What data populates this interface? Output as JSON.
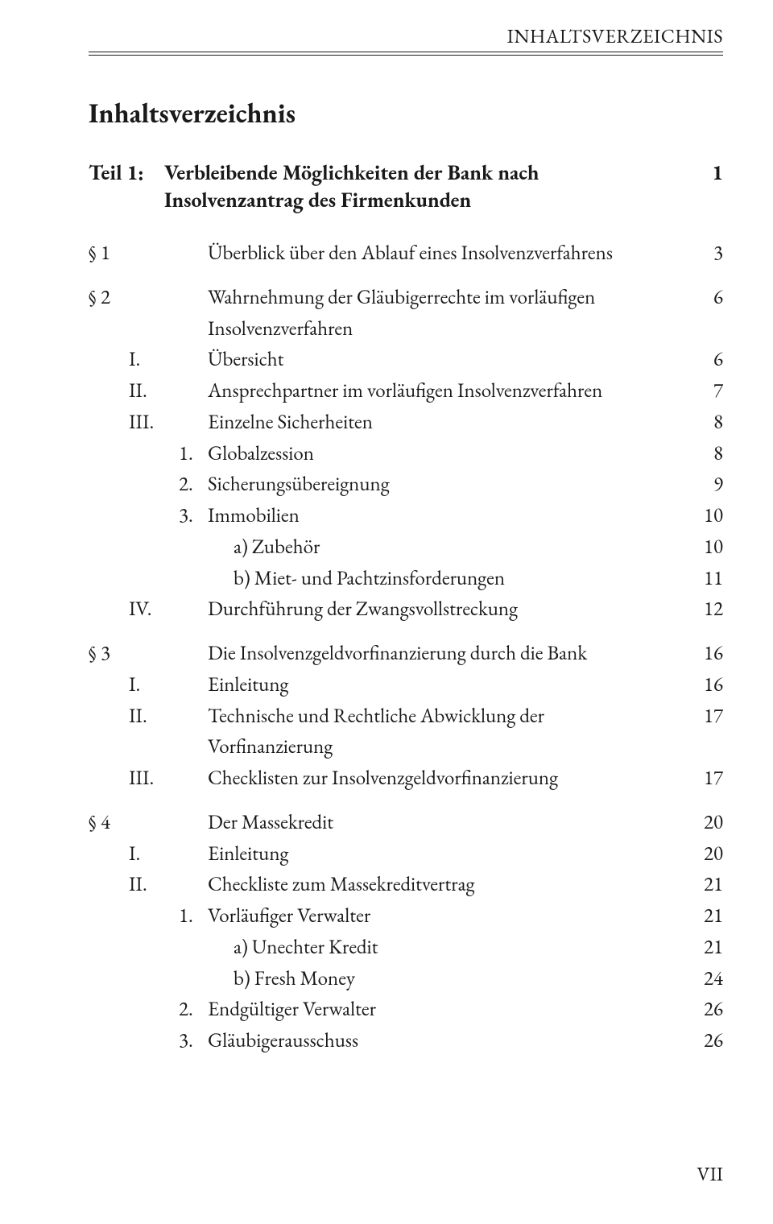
{
  "running_head": "INHALTSVERZEICHNIS",
  "main_title": "Inhaltsverzeichnis",
  "part": {
    "label": "Teil 1:",
    "title": "Verbleibende Möglichkeiten der Bank nach Insolvenzantrag des Firmenkunden",
    "page": "1"
  },
  "rows": [
    {
      "kind": "section",
      "sec": "§ 1",
      "r1": "",
      "r2": "",
      "title": "Überblick über den Ablauf eines Insolvenzverfahrens",
      "page": "3"
    },
    {
      "kind": "section",
      "sec": "§ 2",
      "r1": "",
      "r2": "",
      "title": "Wahrnehmung der Gläubigerrechte im vorläufigen Insolvenzverfahren",
      "page": "6"
    },
    {
      "kind": "sub2",
      "sec": "",
      "r1": "I.",
      "r2": "",
      "title": "Übersicht",
      "page": "6"
    },
    {
      "kind": "sub2",
      "sec": "",
      "r1": "II.",
      "r2": "",
      "title": "Ansprechpartner im vorläufigen Insolvenzverfahren",
      "page": "7"
    },
    {
      "kind": "sub2",
      "sec": "",
      "r1": "III.",
      "r2": "",
      "title": "Einzelne Sicherheiten",
      "page": "8"
    },
    {
      "kind": "sub3",
      "sec": "",
      "r1": "",
      "r2": "1.",
      "title": "Globalzession",
      "page": "8"
    },
    {
      "kind": "sub3",
      "sec": "",
      "r1": "",
      "r2": "2.",
      "title": "Sicherungsübereignung",
      "page": "9"
    },
    {
      "kind": "sub3",
      "sec": "",
      "r1": "",
      "r2": "3.",
      "title": "Immobilien",
      "page": "10"
    },
    {
      "kind": "sub4",
      "sec": "",
      "r1": "",
      "r2": "",
      "title": "a)  Zubehör",
      "page": "10"
    },
    {
      "kind": "sub4",
      "sec": "",
      "r1": "",
      "r2": "",
      "title": "b)  Miet- und Pachtzinsforderungen",
      "page": "11"
    },
    {
      "kind": "sub2",
      "sec": "",
      "r1": "IV.",
      "r2": "",
      "title": "Durchführung der Zwangsvollstreckung",
      "page": "12"
    },
    {
      "kind": "section",
      "sec": "§ 3",
      "r1": "",
      "r2": "",
      "title": "Die Insolvenzgeldvorfinanzierung durch die Bank",
      "page": "16"
    },
    {
      "kind": "sub2",
      "sec": "",
      "r1": "I.",
      "r2": "",
      "title": "Einleitung",
      "page": "16"
    },
    {
      "kind": "sub2",
      "sec": "",
      "r1": "II.",
      "r2": "",
      "title": "Technische und Rechtliche Abwicklung der Vorfinanzierung",
      "page": "17"
    },
    {
      "kind": "sub2",
      "sec": "",
      "r1": "III.",
      "r2": "",
      "title": "Checklisten zur Insolvenzgeldvorfinanzierung",
      "page": "17"
    },
    {
      "kind": "section",
      "sec": "§ 4",
      "r1": "",
      "r2": "",
      "title": "Der Massekredit",
      "page": "20"
    },
    {
      "kind": "sub2",
      "sec": "",
      "r1": "I.",
      "r2": "",
      "title": "Einleitung",
      "page": "20"
    },
    {
      "kind": "sub2",
      "sec": "",
      "r1": "II.",
      "r2": "",
      "title": "Checkliste zum Massekreditvertrag",
      "page": "21"
    },
    {
      "kind": "sub3",
      "sec": "",
      "r1": "",
      "r2": "1.",
      "title": "Vorläufiger Verwalter",
      "page": "21"
    },
    {
      "kind": "sub4",
      "sec": "",
      "r1": "",
      "r2": "",
      "title": "a)  Unechter Kredit",
      "page": "21"
    },
    {
      "kind": "sub4",
      "sec": "",
      "r1": "",
      "r2": "",
      "title": "b)  Fresh Money",
      "page": "24"
    },
    {
      "kind": "sub3",
      "sec": "",
      "r1": "",
      "r2": "2.",
      "title": "Endgültiger Verwalter",
      "page": "26"
    },
    {
      "kind": "sub3",
      "sec": "",
      "r1": "",
      "r2": "3.",
      "title": "Gläubigerausschuss",
      "page": "26"
    }
  ],
  "footer_page": "VII"
}
